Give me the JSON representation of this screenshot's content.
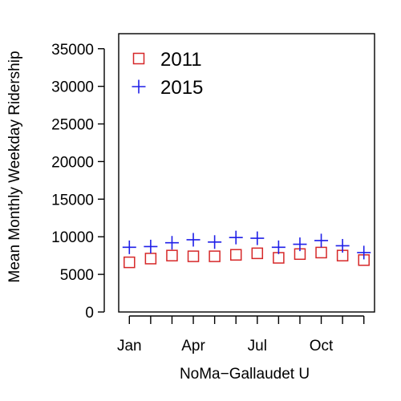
{
  "chart_data": {
    "type": "scatter",
    "title": "",
    "xlabel": "NoMa−Gallaudet U",
    "ylabel": "Mean Monthly Weekday Ridership",
    "x_months": [
      1,
      2,
      3,
      4,
      5,
      6,
      7,
      8,
      9,
      10,
      11,
      12
    ],
    "x_tick_values": [
      1,
      4,
      7,
      10
    ],
    "x_tick_labels": [
      "Jan",
      "Apr",
      "Jul",
      "Oct"
    ],
    "xlim": [
      0.5,
      12.5
    ],
    "ylim": [
      0,
      37000
    ],
    "y_ticks": [
      0,
      5000,
      10000,
      15000,
      20000,
      25000,
      30000,
      35000
    ],
    "y_tick_labels": [
      "0",
      "5000",
      "10000",
      "15000",
      "20000",
      "25000",
      "30000",
      "35000"
    ],
    "grid": false,
    "legend_position": "top-left",
    "series": [
      {
        "name": "2011",
        "marker": "square-open",
        "color": "#d62728",
        "values": [
          6600,
          7100,
          7500,
          7400,
          7400,
          7600,
          7800,
          7200,
          7700,
          7900,
          7500,
          6900
        ]
      },
      {
        "name": "2015",
        "marker": "plus",
        "color": "#1f1fe8",
        "values": [
          8600,
          8700,
          9200,
          9600,
          9300,
          9900,
          9800,
          8600,
          9000,
          9500,
          8800,
          7900
        ]
      }
    ]
  }
}
